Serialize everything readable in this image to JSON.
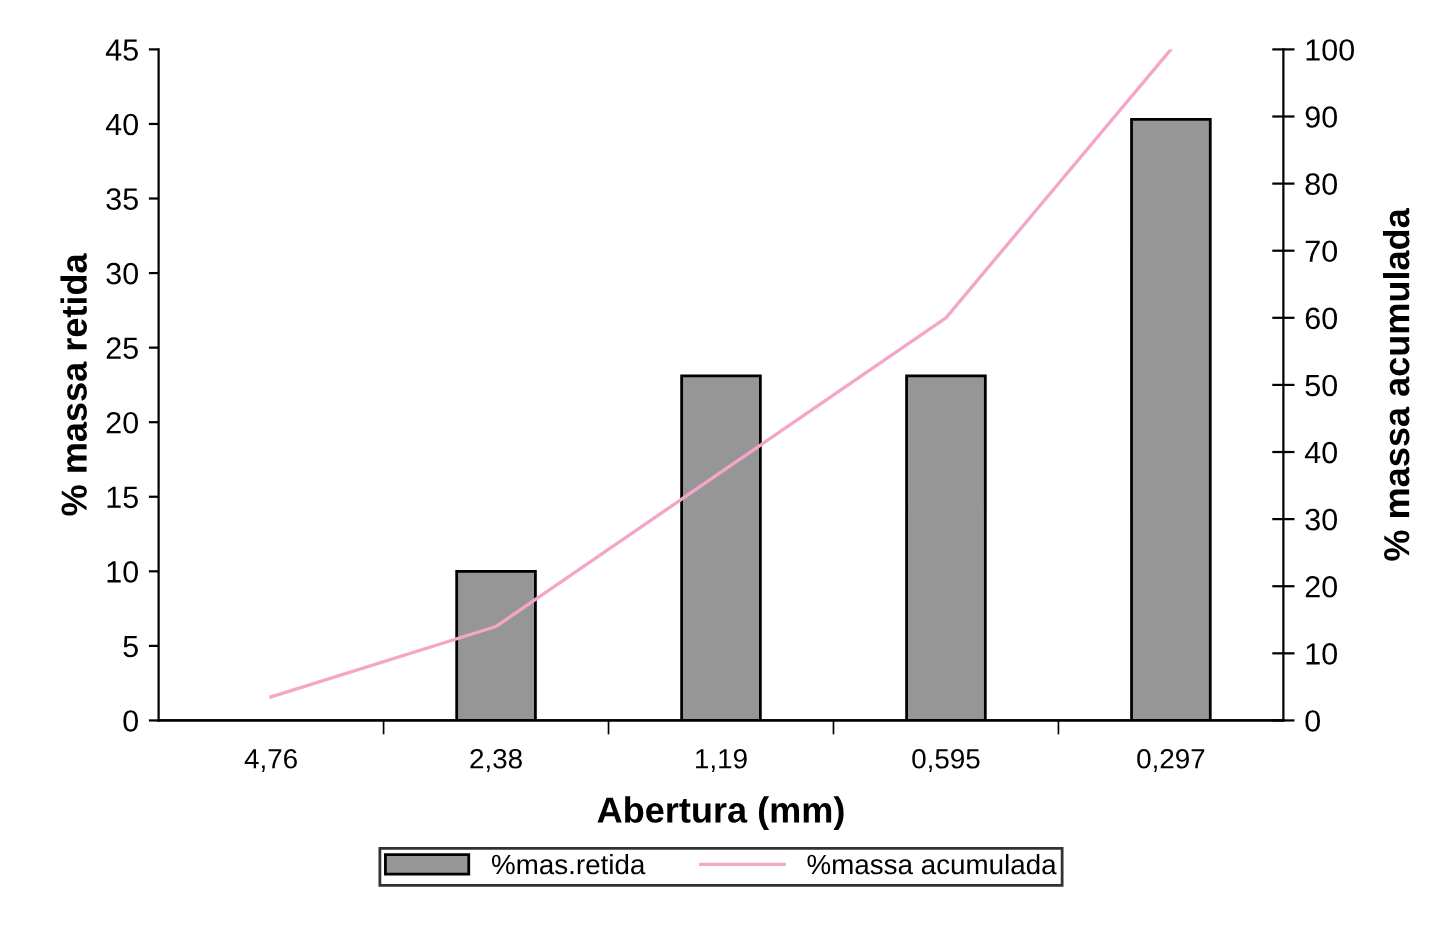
{
  "chart_data": {
    "type": "bar",
    "xlabel": "Abertura (mm)",
    "ylabel": "% massa retida",
    "y2label": "% massa acumulada",
    "categories": [
      "4,76",
      "2,38",
      "1,19",
      "0,595",
      "0,297"
    ],
    "series": [
      {
        "name": "%mas.retida",
        "color": "#969696",
        "values": [
          null,
          10,
          23.1,
          23.1,
          40.3
        ]
      },
      {
        "name": "%massa acumulada",
        "type": "line",
        "axis": "y2",
        "color": "#f4a6c8",
        "values": [
          3.5,
          14,
          37,
          60,
          100
        ]
      }
    ],
    "ylim": [
      0,
      45
    ],
    "yticks": [
      0,
      5,
      10,
      15,
      20,
      25,
      30,
      35,
      40,
      45
    ],
    "y2lim": [
      0,
      100
    ],
    "y2ticks": [
      0,
      10,
      20,
      30,
      40,
      50,
      60,
      70,
      80,
      90,
      100
    ],
    "grid": false,
    "legend": "bottom"
  }
}
